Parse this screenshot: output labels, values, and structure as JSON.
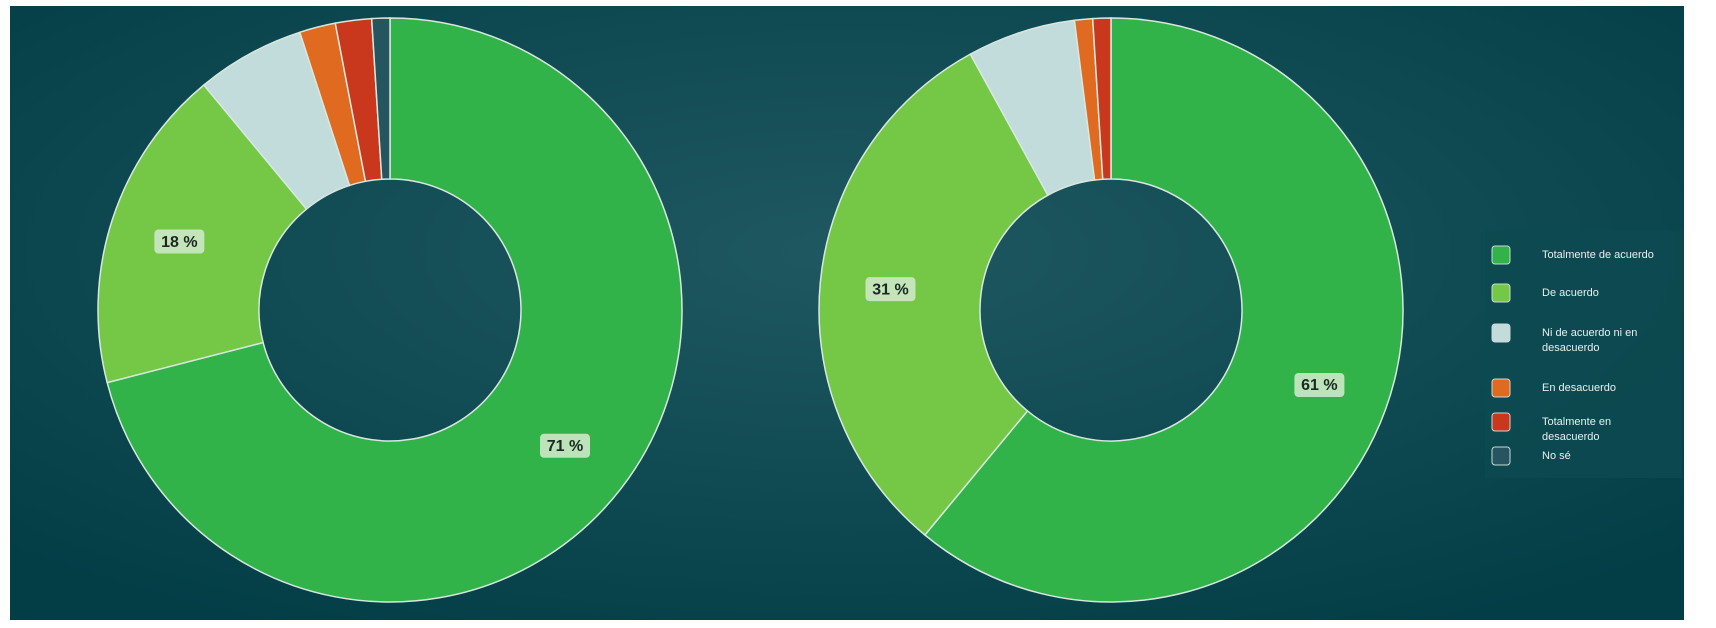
{
  "chart_data": [
    {
      "type": "donut",
      "categories": [
        "Totalmente de acuerdo",
        "De acuerdo",
        "Ni de acuerdo ni en desacuerdo",
        "En desacuerdo",
        "Totalmente en desacuerdo",
        "No sé"
      ],
      "values": [
        71,
        18,
        6,
        2,
        2,
        1
      ],
      "value_labels": [
        "71 %",
        "18 %",
        null,
        null,
        null,
        null
      ],
      "colors": [
        "#31b34a",
        "#74c845",
        "#c2dbdb",
        "#e06a1f",
        "#c9371c",
        "#25555f"
      ]
    },
    {
      "type": "donut",
      "categories": [
        "Totalmente de acuerdo",
        "De acuerdo",
        "Ni de acuerdo ni en desacuerdo",
        "En desacuerdo",
        "Totalmente en desacuerdo",
        "No sé"
      ],
      "values": [
        61,
        31,
        6,
        1,
        1,
        0
      ],
      "value_labels": [
        "61 %",
        "31 %",
        null,
        null,
        null,
        null
      ],
      "colors": [
        "#31b34a",
        "#74c845",
        "#c2dbdb",
        "#e06a1f",
        "#c9371c",
        "#25555f"
      ]
    }
  ]
}
